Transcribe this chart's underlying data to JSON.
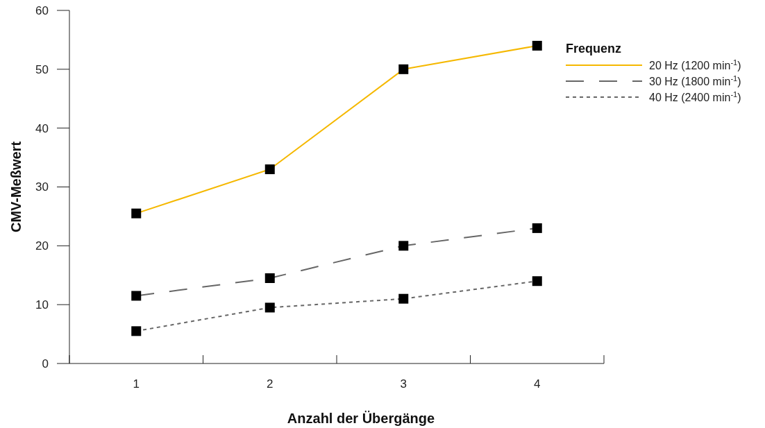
{
  "chart_data": {
    "type": "line",
    "xlabel": "Anzahl der Übergänge",
    "ylabel": "CMV-Meßwert",
    "legend_title": "Frequenz",
    "categories": [
      "1",
      "2",
      "3",
      "4"
    ],
    "ylim": [
      0,
      60
    ],
    "yticks": [
      0,
      10,
      20,
      30,
      40,
      50,
      60
    ],
    "grid": false,
    "legend": "top right",
    "marker": "square",
    "series": [
      {
        "name": "20 Hz (1200 min$^{-1}$)",
        "color": "#f5b800",
        "line_style": "solid",
        "values": [
          25.5,
          33,
          50,
          54
        ]
      },
      {
        "name": "30 Hz (1800 min$^{-1}$)",
        "color": "#666666",
        "line_style": "dashed",
        "values": [
          11.5,
          14.5,
          20,
          23
        ]
      },
      {
        "name": "40 Hz (2400 min$^{-1}$)",
        "color": "#666666",
        "line_style": "dotted",
        "values": [
          5.5,
          9.5,
          11,
          14
        ]
      }
    ]
  }
}
